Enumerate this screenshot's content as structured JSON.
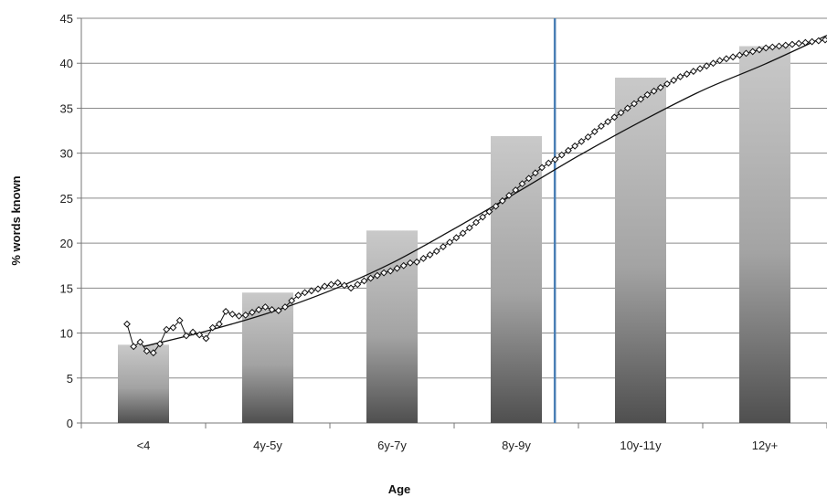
{
  "chart_data": {
    "type": "bar",
    "title": "",
    "xlabel": "Age",
    "ylabel": "% words known",
    "ylim": [
      0,
      45
    ],
    "yticks": [
      0,
      5,
      10,
      15,
      20,
      25,
      30,
      35,
      40,
      45
    ],
    "grid": true,
    "categories": [
      "<4",
      "4y-5y",
      "6y-7y",
      "8y-9y",
      "10y-11y",
      "12y+"
    ],
    "values": [
      8.7,
      14.5,
      21.4,
      31.9,
      38.4,
      41.9
    ],
    "vertical_line": {
      "position": "between 6y-7y and 8y-9y",
      "x_fraction": 0.635,
      "color": "#4a7fb5"
    },
    "lines": [
      {
        "kind": "fitted-curve",
        "color": "#111111",
        "x": [
          0,
          0.5,
          1,
          1.5,
          2,
          2.5,
          3,
          3.5,
          4,
          4.5,
          5,
          5.5
        ],
        "y": [
          8.5,
          10.2,
          12.2,
          14.7,
          17.8,
          21.6,
          25.6,
          29.7,
          33.5,
          37.0,
          39.9,
          43.1
        ]
      },
      {
        "kind": "raw-data-markers",
        "color": "#111111",
        "marker": "diamond",
        "y": [
          11.0,
          8.5,
          9.0,
          8.0,
          7.8,
          8.8,
          10.4,
          10.6,
          11.4,
          9.7,
          10.1,
          9.8,
          9.4,
          10.6,
          11.0,
          12.4,
          12.1,
          11.9,
          12.0,
          12.3,
          12.6,
          12.9,
          12.6,
          12.5,
          12.9,
          13.6,
          14.2,
          14.5,
          14.7,
          14.9,
          15.2,
          15.4,
          15.6,
          15.3,
          15.0,
          15.4,
          15.8,
          16.1,
          16.4,
          16.7,
          16.9,
          17.2,
          17.5,
          17.8,
          17.9,
          18.3,
          18.7,
          19.1,
          19.6,
          20.1,
          20.6,
          21.1,
          21.7,
          22.3,
          22.9,
          23.5,
          24.1,
          24.7,
          25.3,
          25.9,
          26.6,
          27.2,
          27.8,
          28.4,
          28.9,
          29.3,
          29.8,
          30.3,
          30.8,
          31.3,
          31.8,
          32.4,
          33.0,
          33.5,
          34.0,
          34.5,
          35.0,
          35.5,
          36.0,
          36.5,
          36.9,
          37.3,
          37.7,
          38.1,
          38.5,
          38.8,
          39.1,
          39.4,
          39.7,
          40.0,
          40.3,
          40.5,
          40.7,
          40.9,
          41.1,
          41.3,
          41.5,
          41.7,
          41.8,
          41.9,
          42.0,
          42.1,
          42.2,
          42.3,
          42.4,
          42.5,
          42.6
        ]
      }
    ]
  }
}
